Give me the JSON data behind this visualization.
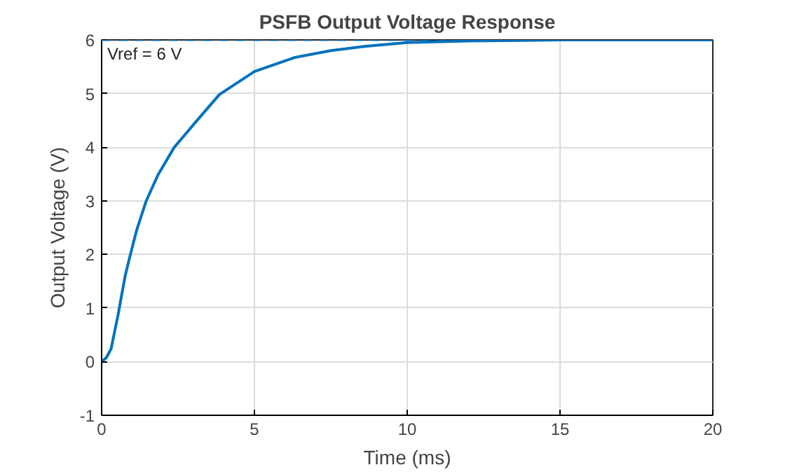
{
  "chart_data": {
    "type": "line",
    "title": "PSFB Output Voltage Response",
    "xlabel": "Time (ms)",
    "ylabel": "Output Voltage (V)",
    "x": [
      0,
      0.15,
      0.31,
      0.54,
      0.77,
      0.92,
      1.15,
      1.46,
      1.85,
      2.38,
      3.08,
      3.85,
      5.0,
      6.3,
      7.5,
      8.6,
      10,
      12,
      15,
      20
    ],
    "series": [
      {
        "color": "#0072bd",
        "values": [
          0,
          0.07,
          0.24,
          0.88,
          1.6,
          1.95,
          2.46,
          3.0,
          3.49,
          4.0,
          4.47,
          4.98,
          5.41,
          5.67,
          5.8,
          5.88,
          5.95,
          5.98,
          6.0,
          6.0
        ]
      }
    ],
    "xlim": [
      0,
      20
    ],
    "xticks": [
      0,
      5,
      10,
      15,
      20
    ],
    "ylim": [
      -1,
      6
    ],
    "yticks": [
      -1,
      0,
      1,
      2,
      3,
      4,
      5,
      6
    ],
    "ref_lines": [
      {
        "axis": "y",
        "value": 6,
        "label": "Vref = 6 V",
        "color": "#0072bd",
        "line_style": "dashed"
      }
    ],
    "grid": true,
    "marker": "none",
    "line_style": "solid"
  }
}
